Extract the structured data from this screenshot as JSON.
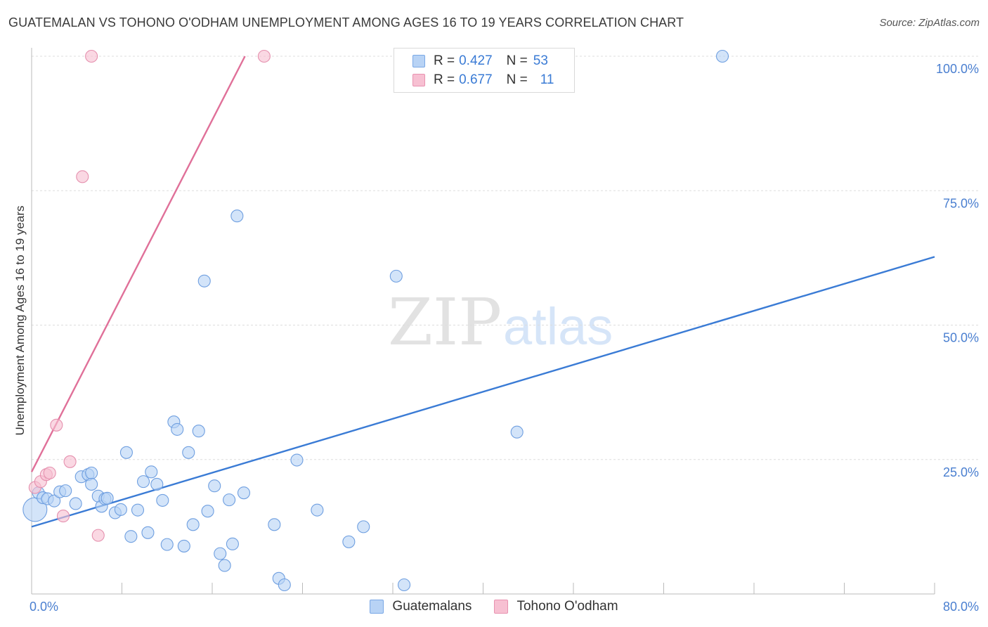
{
  "title": "GUATEMALAN VS TOHONO O'ODHAM UNEMPLOYMENT AMONG AGES 16 TO 19 YEARS CORRELATION CHART",
  "source": "Source: ZipAtlas.com",
  "watermark": {
    "zip": "ZIP",
    "atlas": "atlas"
  },
  "colors": {
    "blue": "#3a7bd5",
    "blue_fill": "#b8d3f5",
    "pink": "#e07099",
    "pink_fill": "#f7c0d2",
    "grid": "#dddddd"
  },
  "legend": {
    "rows": [
      {
        "r_label": "R = ",
        "r_value": "0.427",
        "n_label": "N = ",
        "n_value": "53"
      },
      {
        "r_label": "R = ",
        "r_value": "0.677",
        "n_label": "N = ",
        "n_value": "11"
      }
    ]
  },
  "bottom_legend": [
    "Guatemalans",
    "Tohono O'odham"
  ],
  "chart_data": {
    "type": "scatter",
    "title": "GUATEMALAN VS TOHONO O'ODHAM UNEMPLOYMENT AMONG AGES 16 TO 19 YEARS CORRELATION CHART",
    "xlabel": "",
    "ylabel": "Unemployment Among Ages 16 to 19 years",
    "xlim": [
      0,
      80
    ],
    "ylim": [
      0,
      100
    ],
    "x_tick_labels": [
      "0.0%",
      "80.0%"
    ],
    "y_ticks": [
      25,
      50,
      75,
      100
    ],
    "y_tick_labels": [
      "25.0%",
      "50.0%",
      "75.0%",
      "100.0%"
    ],
    "grid": true,
    "series": [
      {
        "name": "Guatemalans",
        "r": 0.427,
        "n": 53,
        "trend": {
          "x": [
            0,
            80
          ],
          "y": [
            12.5,
            62.7
          ]
        },
        "points": [
          [
            0.3,
            15.7
          ],
          [
            0.6,
            18.8
          ],
          [
            1.0,
            17.9
          ],
          [
            1.4,
            17.7
          ],
          [
            2.0,
            17.3
          ],
          [
            2.5,
            19.0
          ],
          [
            3.0,
            19.2
          ],
          [
            3.9,
            16.8
          ],
          [
            4.4,
            21.8
          ],
          [
            5.0,
            22.2
          ],
          [
            5.3,
            22.5
          ],
          [
            5.3,
            20.4
          ],
          [
            5.9,
            18.2
          ],
          [
            6.2,
            16.3
          ],
          [
            6.5,
            17.7
          ],
          [
            6.7,
            17.8
          ],
          [
            7.4,
            15.1
          ],
          [
            7.9,
            15.7
          ],
          [
            8.4,
            26.3
          ],
          [
            8.8,
            10.7
          ],
          [
            9.4,
            15.6
          ],
          [
            9.9,
            20.9
          ],
          [
            10.3,
            11.4
          ],
          [
            10.6,
            22.7
          ],
          [
            11.1,
            20.4
          ],
          [
            11.6,
            17.4
          ],
          [
            12.0,
            9.2
          ],
          [
            12.6,
            32.0
          ],
          [
            12.9,
            30.6
          ],
          [
            13.5,
            8.9
          ],
          [
            13.9,
            26.3
          ],
          [
            14.3,
            12.9
          ],
          [
            14.8,
            30.3
          ],
          [
            15.3,
            58.2
          ],
          [
            15.6,
            15.4
          ],
          [
            16.2,
            20.1
          ],
          [
            16.7,
            7.5
          ],
          [
            17.1,
            5.3
          ],
          [
            17.5,
            17.5
          ],
          [
            17.8,
            9.3
          ],
          [
            18.2,
            70.3
          ],
          [
            18.8,
            18.8
          ],
          [
            21.5,
            12.9
          ],
          [
            21.9,
            2.9
          ],
          [
            22.4,
            1.7
          ],
          [
            23.5,
            24.9
          ],
          [
            25.3,
            15.6
          ],
          [
            28.1,
            9.7
          ],
          [
            29.4,
            12.5
          ],
          [
            32.3,
            59.1
          ],
          [
            33.0,
            1.7
          ],
          [
            43.0,
            30.1
          ],
          [
            61.2,
            100.0
          ]
        ]
      },
      {
        "name": "Tohono O'odham",
        "r": 0.677,
        "n": 11,
        "trend": {
          "x": [
            0,
            18.9
          ],
          "y": [
            22.7,
            100.0
          ]
        },
        "points": [
          [
            0.3,
            19.8
          ],
          [
            0.8,
            20.9
          ],
          [
            1.3,
            22.2
          ],
          [
            1.6,
            22.5
          ],
          [
            2.2,
            31.4
          ],
          [
            2.8,
            14.5
          ],
          [
            3.4,
            24.6
          ],
          [
            4.5,
            77.6
          ],
          [
            5.3,
            100.0
          ],
          [
            5.9,
            10.9
          ],
          [
            20.6,
            100.0
          ]
        ]
      }
    ]
  }
}
